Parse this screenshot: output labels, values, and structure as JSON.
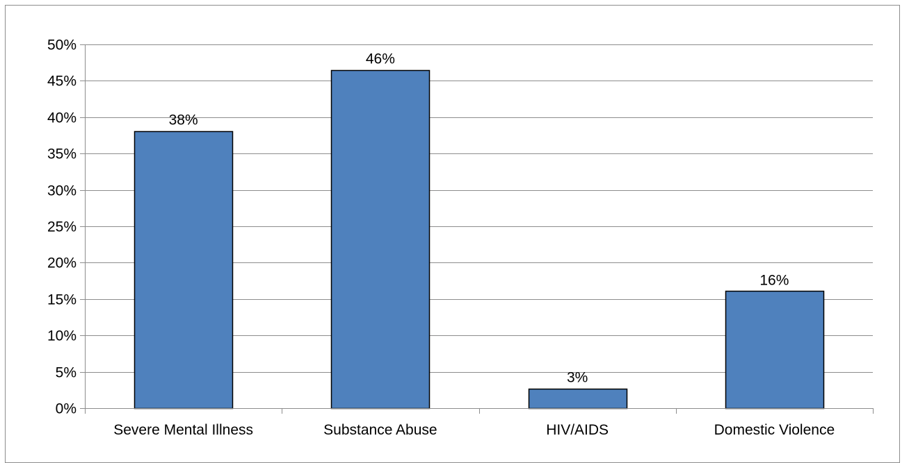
{
  "chart_data": {
    "type": "bar",
    "categories": [
      "Severe Mental Illness",
      "Substance Abuse",
      "HIV/AIDS",
      "Domestic Violence"
    ],
    "values": [
      38,
      46,
      3,
      16
    ],
    "plot_values": [
      38.1,
      46.5,
      2.7,
      16.1
    ],
    "data_labels": [
      "38%",
      "46%",
      "3%",
      "16%"
    ],
    "y_ticks": [
      "0%",
      "5%",
      "10%",
      "15%",
      "20%",
      "25%",
      "30%",
      "35%",
      "40%",
      "45%",
      "50%"
    ],
    "ylim": [
      0,
      50
    ],
    "grid": true,
    "title": "",
    "xlabel": "",
    "ylabel": "",
    "colors": {
      "bar_fill": "#4f81bd",
      "bar_stroke": "#000000",
      "grid": "#8c8c8c",
      "axis": "#8c8c8c"
    }
  }
}
